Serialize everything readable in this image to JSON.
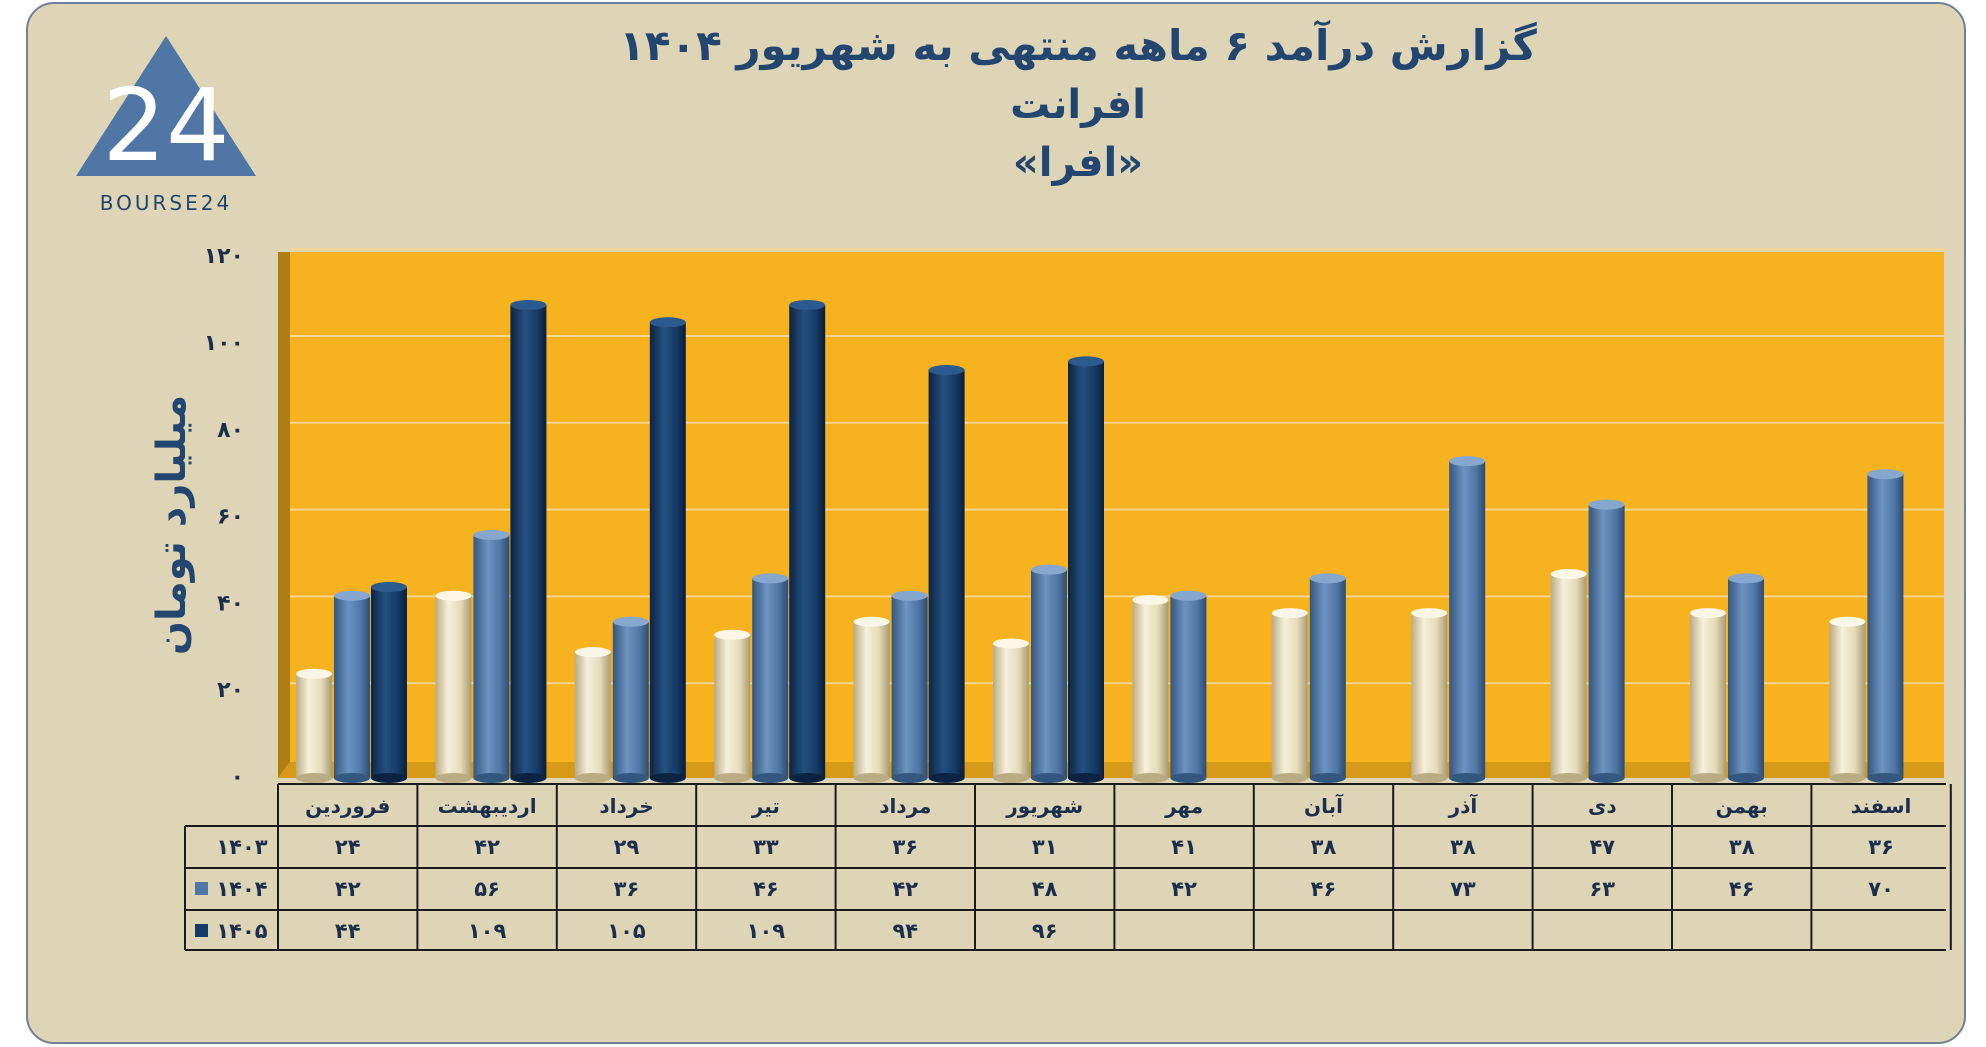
{
  "title": {
    "line1": "گزارش  درآمد ۶ ماهه منتهی به شهریور ۱۴۰۴",
    "line2": "افرانت",
    "line3": "«افرا»"
  },
  "logo": {
    "text": "BOURSE24",
    "mark": "24",
    "icon": "bourse24-triangle-logo"
  },
  "colors": {
    "frame": "#ded4b6",
    "plot": "#f7b21f",
    "series_1403": "#e9dfbf",
    "series_1404": "#4f76a4",
    "series_1405": "#163a66",
    "text": "#1b2f4d"
  },
  "chart_data": {
    "type": "bar",
    "ylabel": "میلیارد تومان",
    "ylim": [
      0,
      120
    ],
    "yticks": [
      "۰",
      "۲۰",
      "۴۰",
      "۶۰",
      "۸۰",
      "۱۰۰",
      "۱۲۰"
    ],
    "ytick_values": [
      0,
      20,
      40,
      60,
      80,
      100,
      120
    ],
    "grid": true,
    "legend": "table-bottom",
    "categories": [
      "فروردین",
      "اردیبهشت",
      "خرداد",
      "تیر",
      "مرداد",
      "شهریور",
      "مهر",
      "آبان",
      "آذر",
      "دی",
      "بهمن",
      "اسفند"
    ],
    "series": [
      {
        "name": "۱۴۰۳",
        "values": [
          24,
          42,
          29,
          33,
          36,
          31,
          41,
          38,
          38,
          47,
          38,
          36
        ],
        "labels": [
          "۲۴",
          "۴۲",
          "۲۹",
          "۳۳",
          "۳۶",
          "۳۱",
          "۴۱",
          "۳۸",
          "۳۸",
          "۴۷",
          "۳۸",
          "۳۶"
        ]
      },
      {
        "name": "۱۴۰۴",
        "values": [
          42,
          56,
          36,
          46,
          42,
          48,
          42,
          46,
          73,
          63,
          46,
          70
        ],
        "labels": [
          "۴۲",
          "۵۶",
          "۳۶",
          "۴۶",
          "۴۲",
          "۴۸",
          "۴۲",
          "۴۶",
          "۷۳",
          "۶۳",
          "۴۶",
          "۷۰"
        ]
      },
      {
        "name": "۱۴۰۵",
        "values": [
          44,
          109,
          105,
          109,
          94,
          96,
          null,
          null,
          null,
          null,
          null,
          null
        ],
        "labels": [
          "۴۴",
          "۱۰۹",
          "۱۰۵",
          "۱۰۹",
          "۹۴",
          "۹۶",
          "",
          "",
          "",
          "",
          "",
          ""
        ]
      }
    ]
  }
}
